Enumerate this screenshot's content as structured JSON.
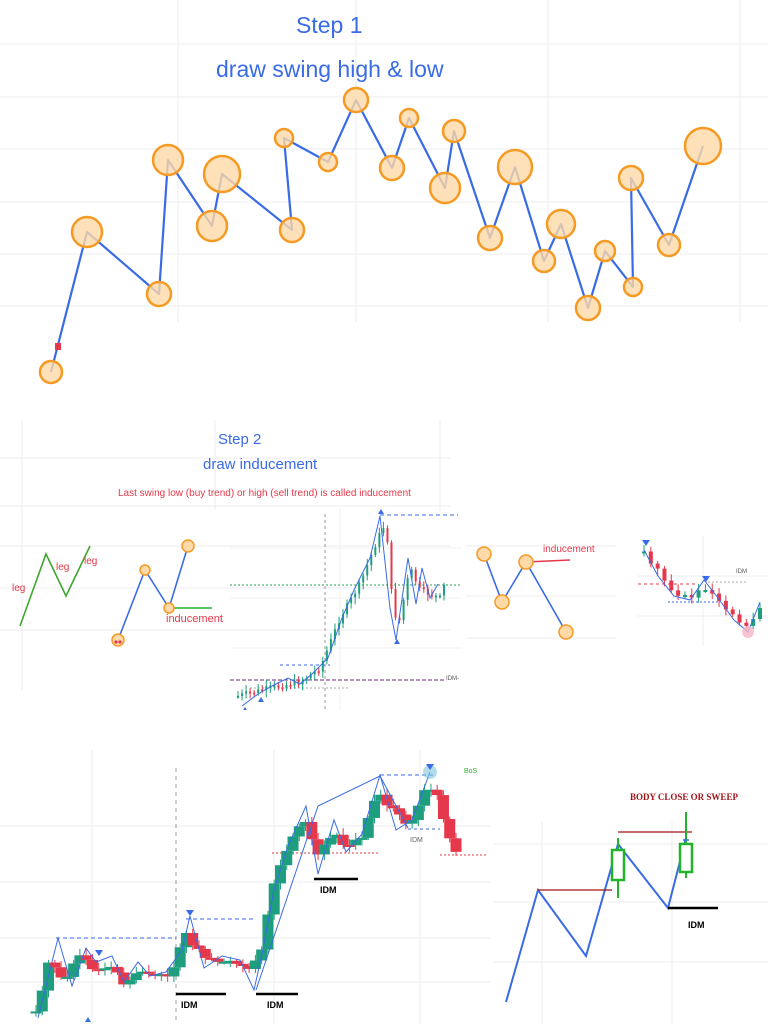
{
  "step1": {
    "title": "Step 1",
    "subtitle": "draw swing high & low"
  },
  "step2": {
    "title": "Step 2",
    "subtitle": "draw inducement",
    "note": "Last swing low (buy trend) or high (sell trend) is called inducement",
    "legs": [
      "leg",
      "leg",
      "leg"
    ],
    "inducement_label": "inducement",
    "inducement_label_2": "inducement",
    "idm_label": "IDM",
    "chart_idm_label": "IDM-"
  },
  "step3": {
    "bos_label": "BoS",
    "idm_labels": [
      "IDM",
      "IDM",
      "IDM",
      "IDM"
    ]
  },
  "step4": {
    "title": "BODY CLOSE OR SWEEP",
    "idm_label": "IDM"
  },
  "colors": {
    "line": "#3a6be6",
    "circle_fill": "#ffd9a8",
    "circle_stroke": "#f59a23",
    "bull": "#1e9e7e",
    "bear": "#e5384a",
    "green": "#22b32a",
    "darkred": "#a01418"
  }
}
